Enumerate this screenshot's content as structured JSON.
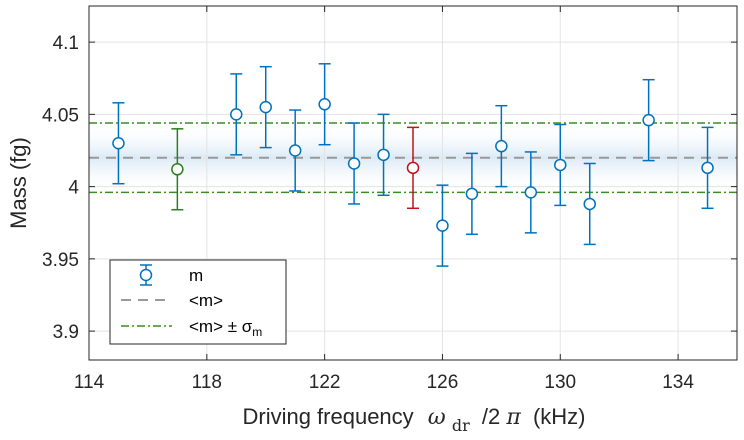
{
  "chart_data": {
    "type": "scatter",
    "xlabel": {
      "main": "Driving frequency",
      "omega": "ω",
      "omega_sub": "dr",
      "suffix_div": "/2",
      "pi": "π",
      "unit": "(kHz)"
    },
    "ylabel": "Mass (fg)",
    "xlim": [
      114,
      136
    ],
    "ylim": [
      3.88,
      4.125
    ],
    "x_ticks": [
      "114",
      "118",
      "122",
      "126",
      "130",
      "134"
    ],
    "x_tick_values": [
      114,
      118,
      122,
      126,
      130,
      134
    ],
    "y_ticks": [
      "3.9",
      "3.95",
      "4",
      "4.05",
      "4.1"
    ],
    "y_tick_values": [
      3.9,
      3.95,
      4.0,
      4.05,
      4.1
    ],
    "grid": true,
    "legend": {
      "placement": "bottom-left",
      "entries": {
        "m": "m",
        "mean": "<m>",
        "band_prefix": "<m> ± σ",
        "band_sub": "m"
      }
    },
    "mean": 4.02,
    "band": [
      3.996,
      4.044
    ],
    "colors": {
      "points": "#0072BD",
      "highlight_green": "#2E7D1F",
      "highlight_red": "#C0141C",
      "mean_line": "#999999",
      "band_lines": "#3A8C25",
      "band_fill": "#DCEAF5"
    },
    "points": [
      {
        "x": 115,
        "y": 4.03,
        "lo": 4.002,
        "hi": 4.058,
        "color": "blue"
      },
      {
        "x": 117,
        "y": 4.012,
        "lo": 3.984,
        "hi": 4.04,
        "color": "green"
      },
      {
        "x": 119,
        "y": 4.05,
        "lo": 4.022,
        "hi": 4.078,
        "color": "blue"
      },
      {
        "x": 120,
        "y": 4.055,
        "lo": 4.027,
        "hi": 4.083,
        "color": "blue"
      },
      {
        "x": 121,
        "y": 4.025,
        "lo": 3.997,
        "hi": 4.053,
        "color": "blue"
      },
      {
        "x": 122,
        "y": 4.057,
        "lo": 4.029,
        "hi": 4.085,
        "color": "blue"
      },
      {
        "x": 123,
        "y": 4.016,
        "lo": 3.988,
        "hi": 4.044,
        "color": "blue"
      },
      {
        "x": 124,
        "y": 4.022,
        "lo": 3.994,
        "hi": 4.05,
        "color": "blue"
      },
      {
        "x": 125,
        "y": 4.013,
        "lo": 3.985,
        "hi": 4.041,
        "color": "red"
      },
      {
        "x": 126,
        "y": 3.973,
        "lo": 3.945,
        "hi": 4.001,
        "color": "blue"
      },
      {
        "x": 127,
        "y": 3.995,
        "lo": 3.967,
        "hi": 4.023,
        "color": "blue"
      },
      {
        "x": 128,
        "y": 4.028,
        "lo": 4.0,
        "hi": 4.056,
        "color": "blue"
      },
      {
        "x": 129,
        "y": 3.996,
        "lo": 3.968,
        "hi": 4.024,
        "color": "blue"
      },
      {
        "x": 130,
        "y": 4.015,
        "lo": 3.987,
        "hi": 4.043,
        "color": "blue"
      },
      {
        "x": 131,
        "y": 3.988,
        "lo": 3.96,
        "hi": 4.016,
        "color": "blue"
      },
      {
        "x": 133,
        "y": 4.046,
        "lo": 4.018,
        "hi": 4.074,
        "color": "blue"
      },
      {
        "x": 135,
        "y": 4.013,
        "lo": 3.985,
        "hi": 4.041,
        "color": "blue"
      }
    ]
  }
}
